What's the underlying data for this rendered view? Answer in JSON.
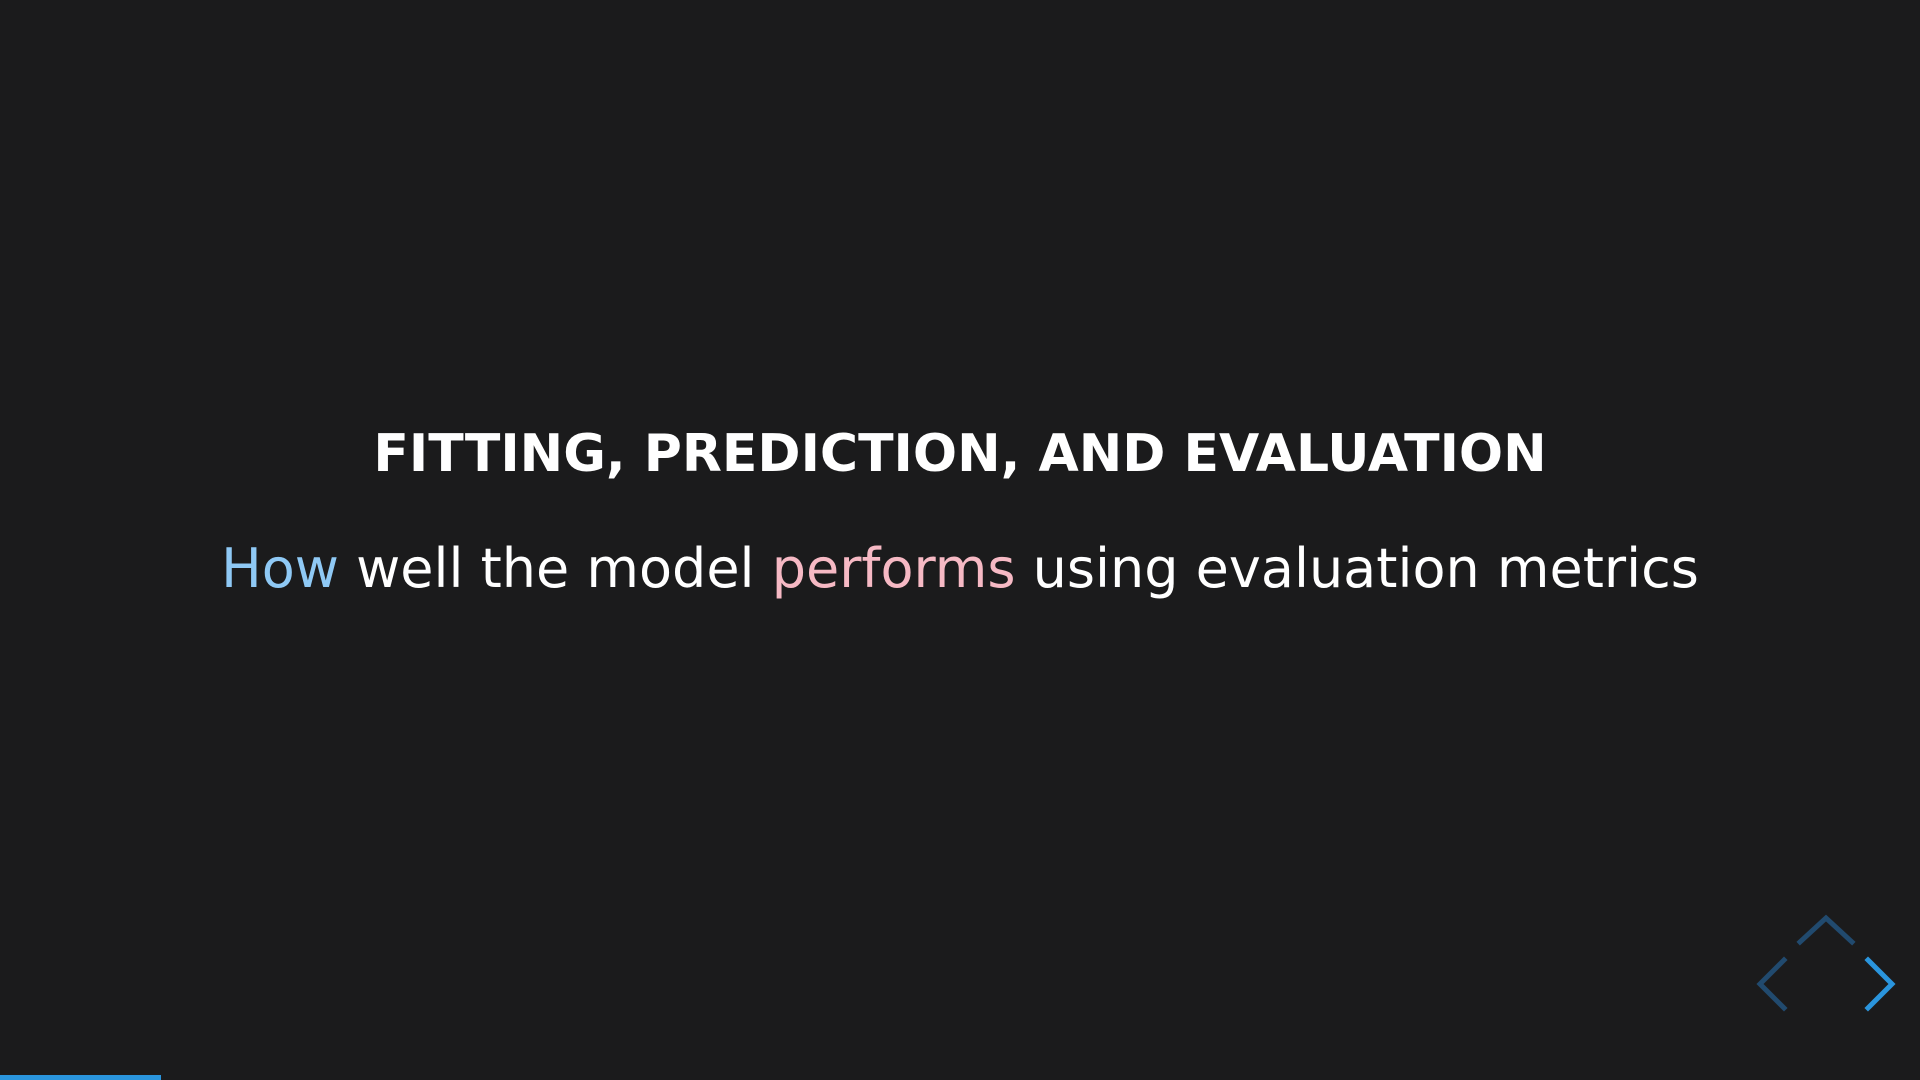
{
  "slide": {
    "title": "FITTING, PREDICTION, AND EVALUATION",
    "subtitle": {
      "part1": "How",
      "part2": " well the model ",
      "part3": "performs",
      "part4": " using evaluation metrics"
    }
  },
  "navigation": {
    "up_icon": "chevron-up-icon",
    "left_icon": "chevron-left-icon",
    "right_icon": "chevron-right-icon"
  },
  "progress": {
    "fraction": 0.084
  },
  "colors": {
    "background": "#1b1b1c",
    "text": "#ffffff",
    "accent_blue": "#8fc9f5",
    "accent_pink": "#f6b9c4",
    "control_active": "#2a95dd",
    "control_dim": "#214a6e"
  }
}
